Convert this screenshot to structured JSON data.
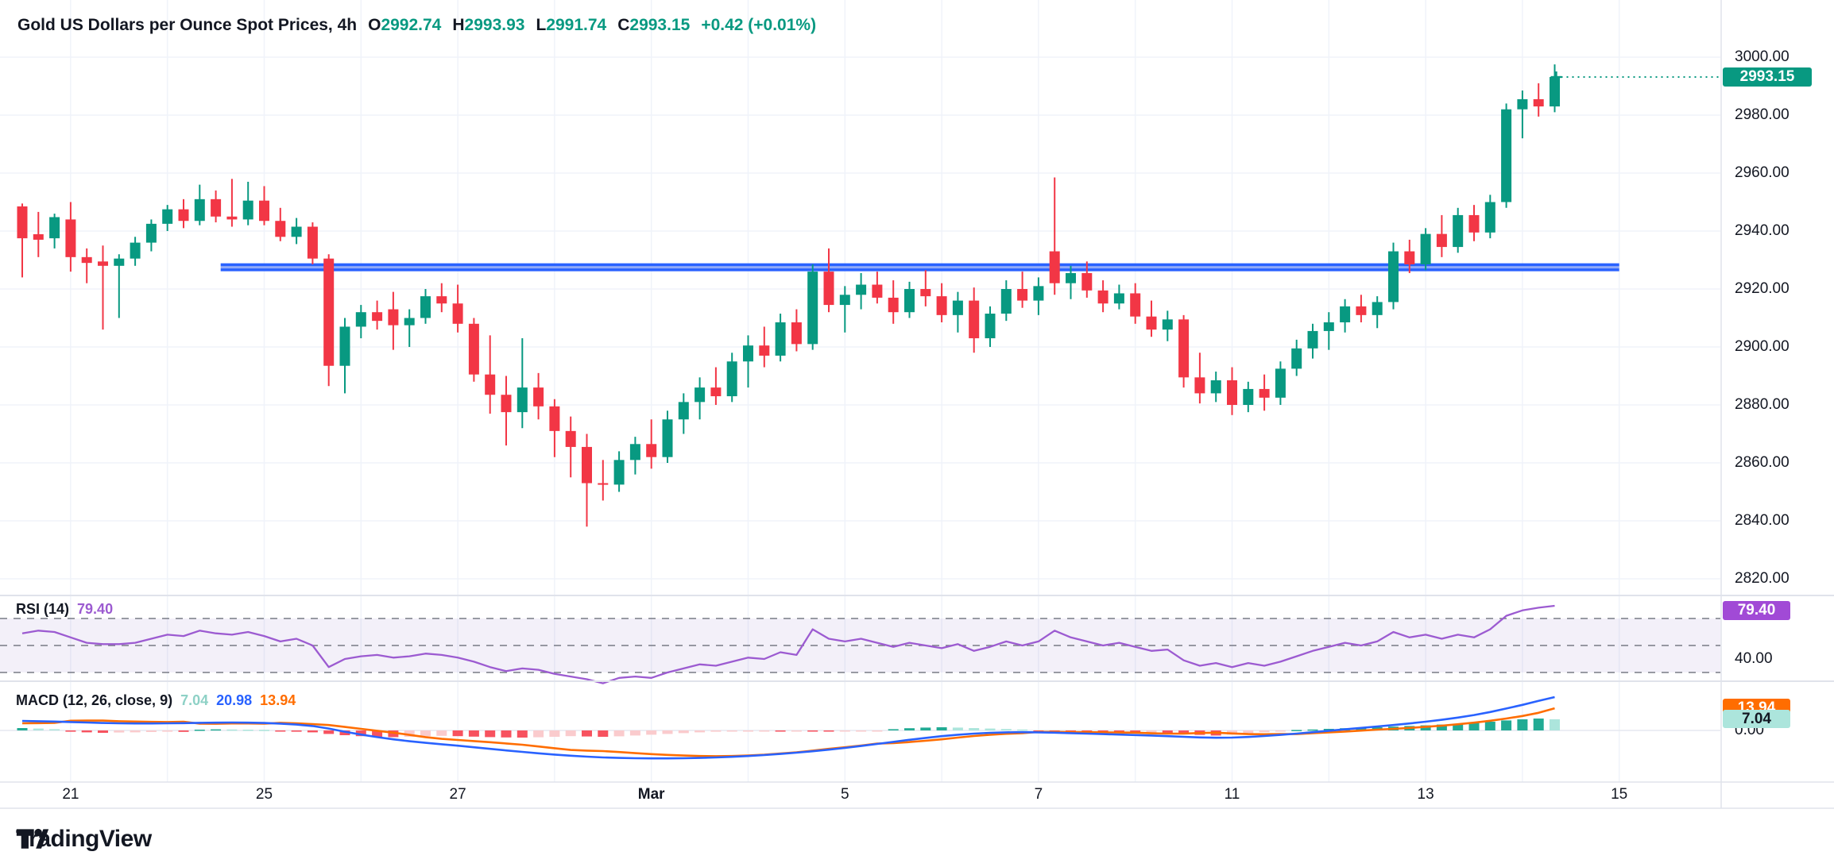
{
  "header": {
    "title": "Gold US Dollars per Ounce Spot Prices, 4h",
    "open_label": "O",
    "open": "2992.74",
    "high_label": "H",
    "high": "2993.93",
    "low_label": "L",
    "low": "2991.74",
    "close_label": "C",
    "close": "2993.15",
    "change": "+0.42 (+0.01%)"
  },
  "rsi_legend": {
    "name": "RSI (14)",
    "value": "79.40"
  },
  "macd_legend": {
    "name": "MACD (12, 26, close, 9)",
    "hist": "7.04",
    "macd": "20.98",
    "signal": "13.94"
  },
  "badges": {
    "price": "2993.15",
    "rsi": "79.40",
    "macd_signal": "13.94",
    "macd_hist": "7.04"
  },
  "axis_extra": {
    "rsi_tick": "40.00",
    "macd_zero": "0.00"
  },
  "logo": {
    "text": "TradingView"
  },
  "colors": {
    "up": "#089981",
    "down": "#F23645",
    "ray": "#2962FF",
    "ray_mid": "#8FA9F7",
    "rsi_line": "#9C5BD1",
    "rsi_badge": "#A14AD6",
    "rsi_band": "#7E57C2",
    "macd_line": "#2962FF",
    "signal_line": "#FF6D00",
    "hist_up": "#22AB94",
    "hist_up_light": "#ACE5DC",
    "hist_down": "#F7525F",
    "hist_down_light": "#FACBCD",
    "grid": "#F0F3FA",
    "divider": "#E0E3EB",
    "dashed": "#787B86",
    "text": "#131722"
  },
  "chart_data": [
    {
      "type": "candlestick",
      "title": "Gold US Dollars per Ounce Spot Prices, 4h",
      "ylim": [
        2818,
        3002
      ],
      "y_ticks": [
        3000,
        2980,
        2960,
        2940,
        2920,
        2900,
        2880,
        2860,
        2840,
        2820
      ],
      "x_labels": [
        {
          "b": 3,
          "t": "21"
        },
        {
          "b": 15,
          "t": "25"
        },
        {
          "b": 27,
          "t": "27"
        },
        {
          "b": 39,
          "t": "Mar",
          "bold": true
        },
        {
          "b": 51,
          "t": "5"
        },
        {
          "b": 63,
          "t": "7"
        },
        {
          "b": 75,
          "t": "11"
        },
        {
          "b": 87,
          "t": "13"
        },
        {
          "b": 99,
          "t": "15"
        }
      ],
      "price_line": {
        "value": 2993.15
      },
      "horizontal_ray": {
        "price": 2927.5,
        "from_bar": 12.3,
        "to_bar": 99
      },
      "candles": [
        [
          2948.5,
          2949.5,
          2924,
          2937.5
        ],
        [
          2938.9,
          2946.6,
          2931,
          2937
        ],
        [
          2937.5,
          2946,
          2934,
          2944.8
        ],
        [
          2944,
          2950,
          2926,
          2931
        ],
        [
          2931,
          2934,
          2922,
          2929
        ],
        [
          2929.5,
          2935,
          2906,
          2928
        ],
        [
          2928,
          2932,
          2910,
          2930.5
        ],
        [
          2930.5,
          2938,
          2928,
          2936
        ],
        [
          2936,
          2944,
          2933,
          2942.5
        ],
        [
          2942.5,
          2949,
          2940,
          2947.5
        ],
        [
          2947.5,
          2951,
          2941,
          2943.5
        ],
        [
          2943.5,
          2956,
          2942,
          2951
        ],
        [
          2951,
          2954,
          2943,
          2945
        ],
        [
          2945,
          2958,
          2941.5,
          2944
        ],
        [
          2944,
          2957,
          2942,
          2950.5
        ],
        [
          2950.5,
          2955.5,
          2942,
          2943.5
        ],
        [
          2943.5,
          2948,
          2936.5,
          2938
        ],
        [
          2938,
          2944.5,
          2935.5,
          2941.5
        ],
        [
          2941.5,
          2943,
          2928.5,
          2930.5
        ],
        [
          2930.5,
          2932,
          2886.5,
          2893.5
        ],
        [
          2893.5,
          2910,
          2884,
          2907
        ],
        [
          2907,
          2914.5,
          2903,
          2912
        ],
        [
          2912,
          2916,
          2906,
          2909
        ],
        [
          2913,
          2919,
          2899,
          2907.5
        ],
        [
          2907.5,
          2913,
          2900,
          2910
        ],
        [
          2910,
          2920,
          2908,
          2917.5
        ],
        [
          2917.5,
          2922,
          2912,
          2915
        ],
        [
          2915,
          2921.5,
          2905,
          2908
        ],
        [
          2908,
          2910,
          2888,
          2890.5
        ],
        [
          2890.5,
          2904,
          2877,
          2883.5
        ],
        [
          2883.5,
          2890,
          2866,
          2877.5
        ],
        [
          2877.5,
          2903,
          2872,
          2886
        ],
        [
          2886,
          2891,
          2875,
          2879.5
        ],
        [
          2879.5,
          2882,
          2862,
          2871
        ],
        [
          2871,
          2876,
          2855,
          2865.5
        ],
        [
          2865.5,
          2870,
          2838,
          2853
        ],
        [
          2853,
          2861,
          2847,
          2852.5
        ],
        [
          2852.5,
          2864,
          2850,
          2861
        ],
        [
          2861,
          2869,
          2856,
          2866.5
        ],
        [
          2866.5,
          2875,
          2858,
          2862
        ],
        [
          2862,
          2878,
          2860,
          2875
        ],
        [
          2875,
          2884,
          2870,
          2881
        ],
        [
          2881,
          2889.5,
          2875,
          2886
        ],
        [
          2886,
          2893,
          2880,
          2883
        ],
        [
          2883,
          2898,
          2881,
          2895
        ],
        [
          2895,
          2904,
          2886,
          2900.5
        ],
        [
          2900.5,
          2907,
          2893,
          2897
        ],
        [
          2897,
          2911.5,
          2895,
          2908.5
        ],
        [
          2908.5,
          2913,
          2898.5,
          2901
        ],
        [
          2901,
          2928.5,
          2899,
          2926
        ],
        [
          2926,
          2934,
          2912,
          2914.5
        ],
        [
          2914.5,
          2921,
          2905,
          2918
        ],
        [
          2918,
          2925.5,
          2913,
          2921.5
        ],
        [
          2921.5,
          2926,
          2915,
          2917
        ],
        [
          2917,
          2923,
          2908,
          2912
        ],
        [
          2912,
          2922.5,
          2910,
          2920
        ],
        [
          2920,
          2926.5,
          2914,
          2917.5
        ],
        [
          2917.5,
          2922,
          2908.5,
          2911
        ],
        [
          2911,
          2919,
          2905,
          2916
        ],
        [
          2916,
          2920.5,
          2898,
          2903
        ],
        [
          2903,
          2914,
          2900,
          2911.5
        ],
        [
          2911.5,
          2923,
          2909,
          2920
        ],
        [
          2920,
          2926,
          2913.5,
          2916
        ],
        [
          2916,
          2924,
          2911,
          2921
        ],
        [
          2933,
          2958.5,
          2918,
          2922
        ],
        [
          2922,
          2928,
          2916.5,
          2925.5
        ],
        [
          2925.5,
          2929.5,
          2917,
          2919.5
        ],
        [
          2919.5,
          2923,
          2912,
          2915
        ],
        [
          2915,
          2921.5,
          2913,
          2918.5
        ],
        [
          2918.5,
          2922,
          2908,
          2910.5
        ],
        [
          2910.5,
          2916,
          2903.5,
          2906
        ],
        [
          2906,
          2912.5,
          2902,
          2909.5
        ],
        [
          2909.5,
          2911,
          2886,
          2889.5
        ],
        [
          2889.5,
          2898,
          2880.5,
          2884
        ],
        [
          2884,
          2891.5,
          2881,
          2888.5
        ],
        [
          2888.5,
          2893,
          2876.5,
          2880
        ],
        [
          2880,
          2888,
          2877.5,
          2885.5
        ],
        [
          2885.5,
          2890.5,
          2878,
          2882.5
        ],
        [
          2882.5,
          2895,
          2880,
          2892.5
        ],
        [
          2892.5,
          2902.5,
          2890,
          2899.5
        ],
        [
          2899.5,
          2908,
          2896,
          2905.5
        ],
        [
          2905.5,
          2912,
          2899,
          2908.5
        ],
        [
          2908.5,
          2916.5,
          2905,
          2914
        ],
        [
          2914,
          2918,
          2908.5,
          2911
        ],
        [
          2911,
          2917.5,
          2906.5,
          2915.5
        ],
        [
          2915.5,
          2936,
          2913,
          2933
        ],
        [
          2933,
          2937,
          2925.5,
          2928.5
        ],
        [
          2928.5,
          2941,
          2926.5,
          2939
        ],
        [
          2939,
          2945.5,
          2931,
          2934.5
        ],
        [
          2934.5,
          2948,
          2932.5,
          2945.5
        ],
        [
          2945.5,
          2949,
          2936.5,
          2939.5
        ],
        [
          2939.5,
          2952.5,
          2937.5,
          2950
        ],
        [
          2950,
          2984,
          2948,
          2982
        ],
        [
          2982,
          2988.5,
          2972,
          2985.5
        ],
        [
          2985.5,
          2991,
          2979.5,
          2983
        ],
        [
          2983,
          2997.5,
          2981,
          2993.15
        ]
      ]
    },
    {
      "type": "line",
      "title": "RSI (14)",
      "current": 79.4,
      "levels": [
        70,
        50,
        30
      ],
      "ylabel_shown": 40,
      "values": [
        59,
        61,
        60,
        56,
        52,
        51,
        51,
        52,
        55,
        58,
        57,
        61,
        59,
        58,
        60,
        57,
        53,
        55,
        50,
        34,
        40,
        42,
        43,
        41,
        42,
        44,
        43,
        41,
        38,
        34,
        31,
        33,
        32,
        29,
        27,
        25,
        22,
        26,
        27,
        26,
        30,
        33,
        36,
        35,
        38,
        41,
        40,
        45,
        43,
        62,
        55,
        53,
        55,
        52,
        49,
        52,
        50,
        48,
        51,
        46,
        49,
        53,
        50,
        53,
        61,
        56,
        53,
        50,
        52,
        49,
        46,
        47,
        39,
        35,
        37,
        34,
        37,
        35,
        38,
        42,
        46,
        49,
        52,
        50,
        53,
        60,
        56,
        58,
        55,
        58,
        56,
        62,
        72,
        76,
        78,
        79.4
      ]
    },
    {
      "type": "bar",
      "title": "MACD (12, 26, close, 9)",
      "current_macd": 20.98,
      "current_signal": 13.94,
      "current_hist": 7.04,
      "zero": 0,
      "macd": [
        6.0,
        5.8,
        5.6,
        5.3,
        5.0,
        4.7,
        4.5,
        4.4,
        4.4,
        4.5,
        4.6,
        4.8,
        4.9,
        5.0,
        4.9,
        4.7,
        4.3,
        3.7,
        2.8,
        1.2,
        -0.8,
        -2.6,
        -4.2,
        -5.6,
        -6.8,
        -7.8,
        -8.7,
        -9.6,
        -10.6,
        -11.6,
        -12.6,
        -13.5,
        -14.4,
        -15.2,
        -15.9,
        -16.5,
        -17.0,
        -17.3,
        -17.5,
        -17.6,
        -17.6,
        -17.5,
        -17.3,
        -17.0,
        -16.6,
        -16.1,
        -15.5,
        -14.8,
        -14.0,
        -13.1,
        -12.1,
        -11.0,
        -9.8,
        -8.5,
        -7.2,
        -5.9,
        -4.7,
        -3.6,
        -2.7,
        -2.0,
        -1.5,
        -1.2,
        -1.1,
        -1.2,
        -1.4,
        -1.7,
        -2.0,
        -2.3,
        -2.6,
        -2.9,
        -3.2,
        -3.6,
        -4.0,
        -4.4,
        -4.6,
        -4.5,
        -4.1,
        -3.5,
        -2.8,
        -2.0,
        -1.1,
        -0.2,
        0.7,
        1.6,
        2.5,
        3.4,
        4.4,
        5.5,
        6.7,
        8.1,
        9.7,
        11.6,
        13.8,
        16.1,
        18.6,
        20.98
      ],
      "hist": [
        1.5,
        1.2,
        0.8,
        -0.8,
        -1.2,
        -1.5,
        -1.3,
        -1.2,
        -1.0,
        -0.8,
        -0.9,
        0.5,
        0.7,
        0.6,
        0.5,
        0.4,
        -0.5,
        -0.8,
        -1.2,
        -2.2,
        -3.0,
        -3.6,
        -4.0,
        -4.2,
        -4.0,
        -3.6,
        -3.4,
        -3.6,
        -3.9,
        -4.2,
        -4.4,
        -4.5,
        -4.3,
        -4.0,
        -3.6,
        -3.8,
        -4.0,
        -3.7,
        -3.2,
        -2.7,
        -2.2,
        -1.7,
        -1.2,
        -0.8,
        -0.5,
        -0.3,
        -0.2,
        -0.3,
        -0.2,
        -0.4,
        -0.5,
        -0.4,
        -0.3,
        -0.2,
        0.8,
        1.4,
        1.8,
        2.0,
        1.8,
        1.5,
        1.2,
        0.9,
        0.6,
        -0.3,
        -0.5,
        -0.7,
        -0.9,
        -1.1,
        -1.3,
        -1.5,
        -1.4,
        -1.6,
        -2.0,
        -2.8,
        -3.2,
        -2.6,
        -1.8,
        -1.1,
        -0.5,
        0.3,
        0.6,
        1.0,
        1.4,
        1.7,
        2.0,
        2.4,
        2.8,
        3.2,
        3.7,
        4.2,
        4.8,
        5.5,
        6.3,
        7.0,
        7.5,
        7.04
      ]
    }
  ]
}
